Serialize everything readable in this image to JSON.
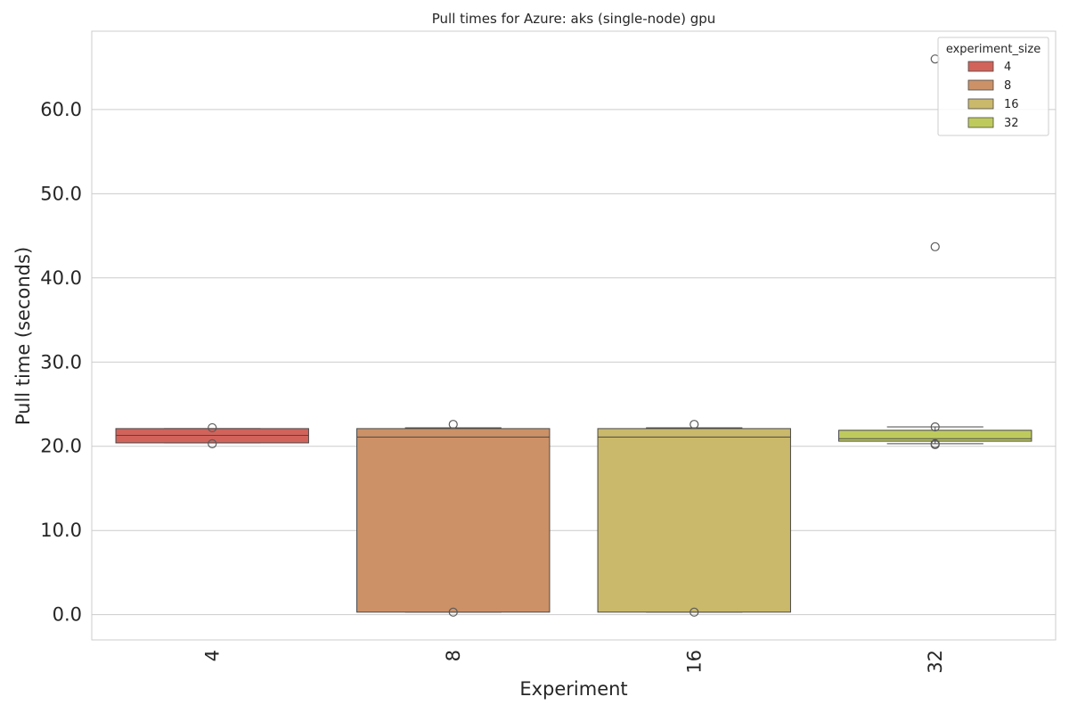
{
  "chart_data": {
    "type": "box",
    "title": "Pull times for Azure: aks (single-node) gpu",
    "xlabel": "Experiment",
    "ylabel": "Pull time (seconds)",
    "ylim": [
      -3.0,
      69.3
    ],
    "yticks": [
      0,
      10,
      20,
      30,
      40,
      50,
      60
    ],
    "ytick_labels": [
      "0.0",
      "10.0",
      "20.0",
      "30.0",
      "40.0",
      "50.0",
      "60.0"
    ],
    "grid": "horizontal",
    "legend": {
      "title": "experiment_size",
      "placement": "top-right"
    },
    "categories": [
      "4",
      "8",
      "16",
      "32"
    ],
    "series": [
      {
        "name": "4",
        "color": "#d1635b",
        "q1": 20.4,
        "median": 21.3,
        "q3": 22.1,
        "whisker_low": 20.4,
        "whisker_high": 22.1,
        "outliers": [
          22.2,
          20.3
        ]
      },
      {
        "name": "8",
        "color": "#cc9167",
        "q1": 0.3,
        "median": 21.1,
        "q3": 22.1,
        "whisker_low": 0.3,
        "whisker_high": 22.2,
        "outliers": [
          22.6,
          0.3
        ]
      },
      {
        "name": "16",
        "color": "#cab96a",
        "q1": 0.3,
        "median": 21.1,
        "q3": 22.1,
        "whisker_low": 0.3,
        "whisker_high": 22.2,
        "outliers": [
          22.6,
          0.3
        ]
      },
      {
        "name": "32",
        "color": "#bfca5d",
        "q1": 20.6,
        "median": 20.9,
        "q3": 21.9,
        "whisker_low": 20.3,
        "whisker_high": 22.3,
        "outliers": [
          66.0,
          43.7,
          22.3,
          20.3,
          20.2
        ]
      }
    ]
  }
}
